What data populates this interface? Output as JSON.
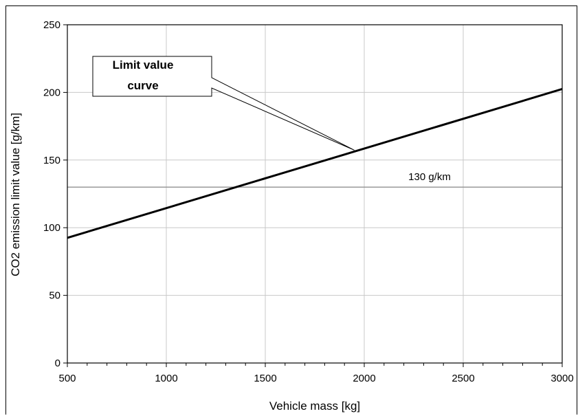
{
  "chart_data": {
    "type": "line",
    "xlabel": "Vehicle mass [kg]",
    "ylabel": "CO2 emission limit value [g/km]",
    "xlim": [
      500,
      3000
    ],
    "ylim": [
      0,
      250
    ],
    "x_ticks": [
      500,
      1000,
      1500,
      2000,
      2500,
      3000
    ],
    "y_ticks": [
      0,
      50,
      100,
      150,
      200,
      250
    ],
    "grid": true,
    "series": [
      {
        "name": "Limit value curve",
        "x": [
          500,
          3000
        ],
        "y": [
          92.5,
          202.5
        ],
        "color": "#000000"
      }
    ],
    "reference_lines": [
      {
        "y": 130,
        "label": "130 g/km",
        "color": "#909090"
      }
    ],
    "callout": {
      "line1": "Limit value",
      "line2": "curve",
      "target_x": 1950
    }
  }
}
